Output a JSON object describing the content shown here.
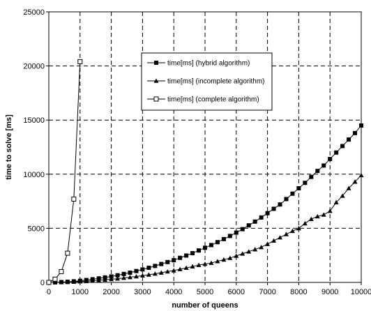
{
  "chart_data": {
    "type": "line",
    "title": "",
    "xlabel": "number of queens",
    "ylabel": "time to solve [ms]",
    "xlim": [
      0,
      10000
    ],
    "ylim": [
      0,
      25000
    ],
    "xticks": [
      0,
      1000,
      2000,
      3000,
      4000,
      5000,
      6000,
      7000,
      8000,
      9000,
      10000
    ],
    "yticks": [
      0,
      5000,
      10000,
      15000,
      20000,
      25000
    ],
    "grid": true,
    "legend_position": "upper-center",
    "series": [
      {
        "name": "time[ms] (hybrid algorithm)",
        "marker": "filled-square",
        "color": "#000000",
        "x": [
          0,
          200,
          400,
          600,
          800,
          1000,
          1200,
          1400,
          1600,
          1800,
          2000,
          2200,
          2400,
          2600,
          2800,
          3000,
          3200,
          3400,
          3600,
          3800,
          4000,
          4200,
          4400,
          4600,
          4800,
          5000,
          5200,
          5400,
          5600,
          5800,
          6000,
          6200,
          6400,
          6600,
          6800,
          7000,
          7200,
          7400,
          7600,
          7800,
          8000,
          8200,
          8400,
          8600,
          8800,
          9000,
          9200,
          9400,
          9600,
          9800,
          10000
        ],
        "y": [
          0,
          10,
          30,
          60,
          100,
          150,
          220,
          290,
          370,
          460,
          550,
          660,
          780,
          900,
          1050,
          1200,
          1350,
          1520,
          1700,
          1880,
          2050,
          2270,
          2480,
          2700,
          2950,
          3200,
          3450,
          3720,
          4000,
          4290,
          4600,
          4920,
          5270,
          5620,
          6000,
          6400,
          6800,
          7200,
          7700,
          8200,
          8700,
          9200,
          9750,
          10300,
          10800,
          11400,
          12000,
          12600,
          13200,
          13800,
          14500
        ]
      },
      {
        "name": "time[ms] (incomplete algorithm)",
        "marker": "filled-triangle",
        "color": "#000000",
        "x": [
          0,
          200,
          400,
          600,
          800,
          1000,
          1200,
          1400,
          1600,
          1800,
          2000,
          2200,
          2400,
          2600,
          2800,
          3000,
          3200,
          3400,
          3600,
          3800,
          4000,
          4200,
          4400,
          4600,
          4800,
          5000,
          5200,
          5400,
          5600,
          5800,
          6000,
          6200,
          6400,
          6600,
          6800,
          7000,
          7200,
          7400,
          7600,
          7800,
          8000,
          8200,
          8400,
          8600,
          8800,
          9000,
          9200,
          9400,
          9600,
          9800,
          10000
        ],
        "y": [
          0,
          5,
          15,
          30,
          50,
          80,
          110,
          150,
          190,
          240,
          290,
          350,
          410,
          480,
          550,
          630,
          710,
          800,
          900,
          1000,
          1100,
          1220,
          1340,
          1470,
          1600,
          1700,
          1800,
          1950,
          2100,
          2250,
          2450,
          2650,
          2850,
          3050,
          3250,
          3550,
          3850,
          4150,
          4450,
          4750,
          5000,
          5450,
          5850,
          6100,
          6250,
          6600,
          7400,
          8000,
          8700,
          9300,
          9900
        ]
      },
      {
        "name": "time[ms] (complete algorithm)",
        "marker": "open-square",
        "color": "#000000",
        "x": [
          0,
          200,
          400,
          600,
          800,
          1000
        ],
        "y": [
          0,
          300,
          1000,
          2700,
          7700,
          20400
        ]
      }
    ]
  }
}
